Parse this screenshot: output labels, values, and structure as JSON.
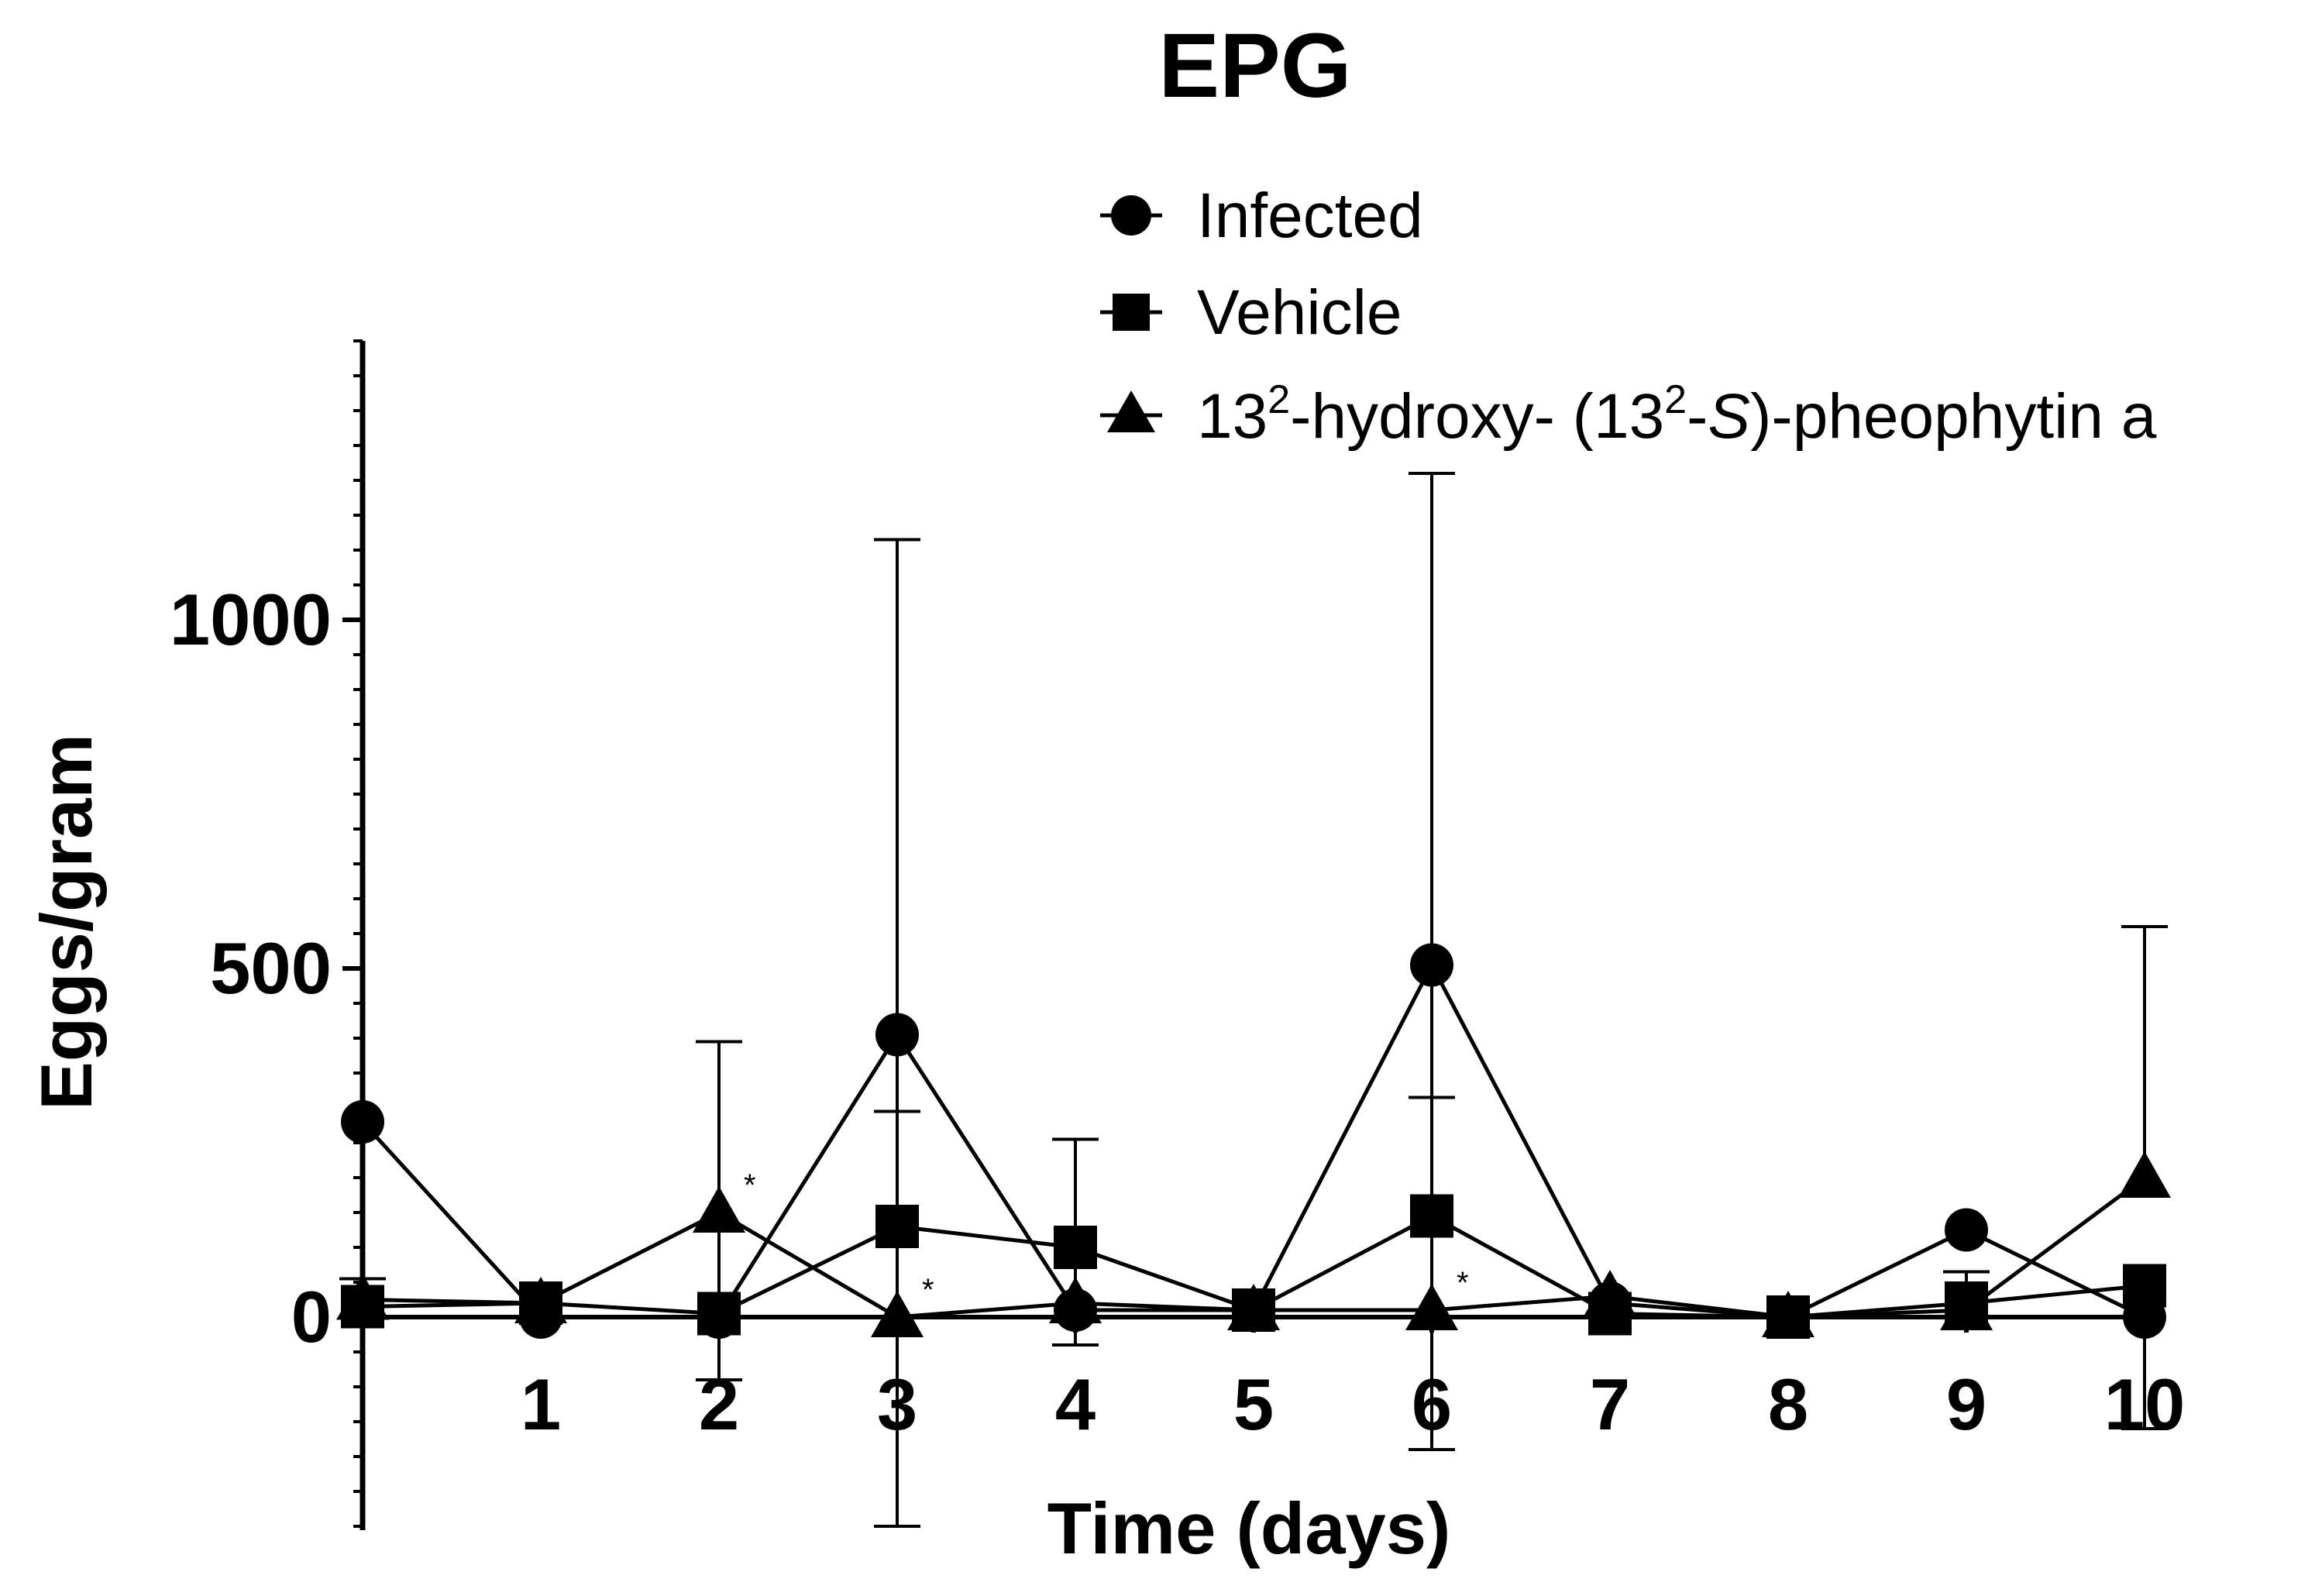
{
  "chart_data": {
    "type": "line",
    "title": "EPG",
    "xlabel": "Time (days)",
    "ylabel": "Eggs/gram",
    "x": [
      0,
      1,
      2,
      3,
      4,
      5,
      6,
      7,
      8,
      9,
      10
    ],
    "x_tick_labels": [
      "1",
      "2",
      "3",
      "4",
      "5",
      "6",
      "7",
      "8",
      "9",
      "10"
    ],
    "y_tick_labels": [
      "0",
      "500",
      "1000"
    ],
    "ylim": [
      -300,
      1400
    ],
    "xlim": [
      0,
      10
    ],
    "grid": false,
    "legend_position": "top-right",
    "series": [
      {
        "name": "Infected",
        "marker": "circle",
        "values": [
          280,
          0,
          0,
          405,
          10,
          10,
          505,
          20,
          0,
          125,
          0
        ],
        "error_upper": [
          null,
          null,
          null,
          1115,
          null,
          null,
          1210,
          null,
          null,
          null,
          null
        ],
        "error_lower": [
          null,
          null,
          null,
          -300,
          null,
          null,
          -190,
          null,
          null,
          null,
          -160
        ]
      },
      {
        "name": "Vehicle",
        "marker": "square",
        "values": [
          15,
          20,
          5,
          130,
          100,
          10,
          145,
          5,
          0,
          20,
          45
        ],
        "error_upper": [
          55,
          null,
          null,
          295,
          255,
          null,
          315,
          null,
          null,
          65,
          null
        ],
        "error_lower": [
          null,
          null,
          null,
          null,
          -40,
          null,
          null,
          null,
          null,
          null,
          null
        ]
      },
      {
        "name_parts": [
          "13",
          "2",
          "-hydroxy- (13",
          "2",
          "-",
          "S",
          ")-pheophytin a"
        ],
        "marker": "triangle",
        "values": [
          25,
          20,
          150,
          0,
          20,
          10,
          10,
          30,
          0,
          10,
          200
        ],
        "error_upper": [
          null,
          null,
          395,
          null,
          null,
          null,
          null,
          null,
          null,
          null,
          560
        ],
        "error_lower": [
          null,
          null,
          -90,
          null,
          null,
          null,
          null,
          null,
          null,
          null,
          null
        ]
      }
    ],
    "annotations": [
      {
        "text": "*",
        "x": 2,
        "series": 2
      },
      {
        "text": "*",
        "x": 3,
        "series": 2
      },
      {
        "text": "*",
        "x": 6,
        "series": 2
      }
    ]
  }
}
